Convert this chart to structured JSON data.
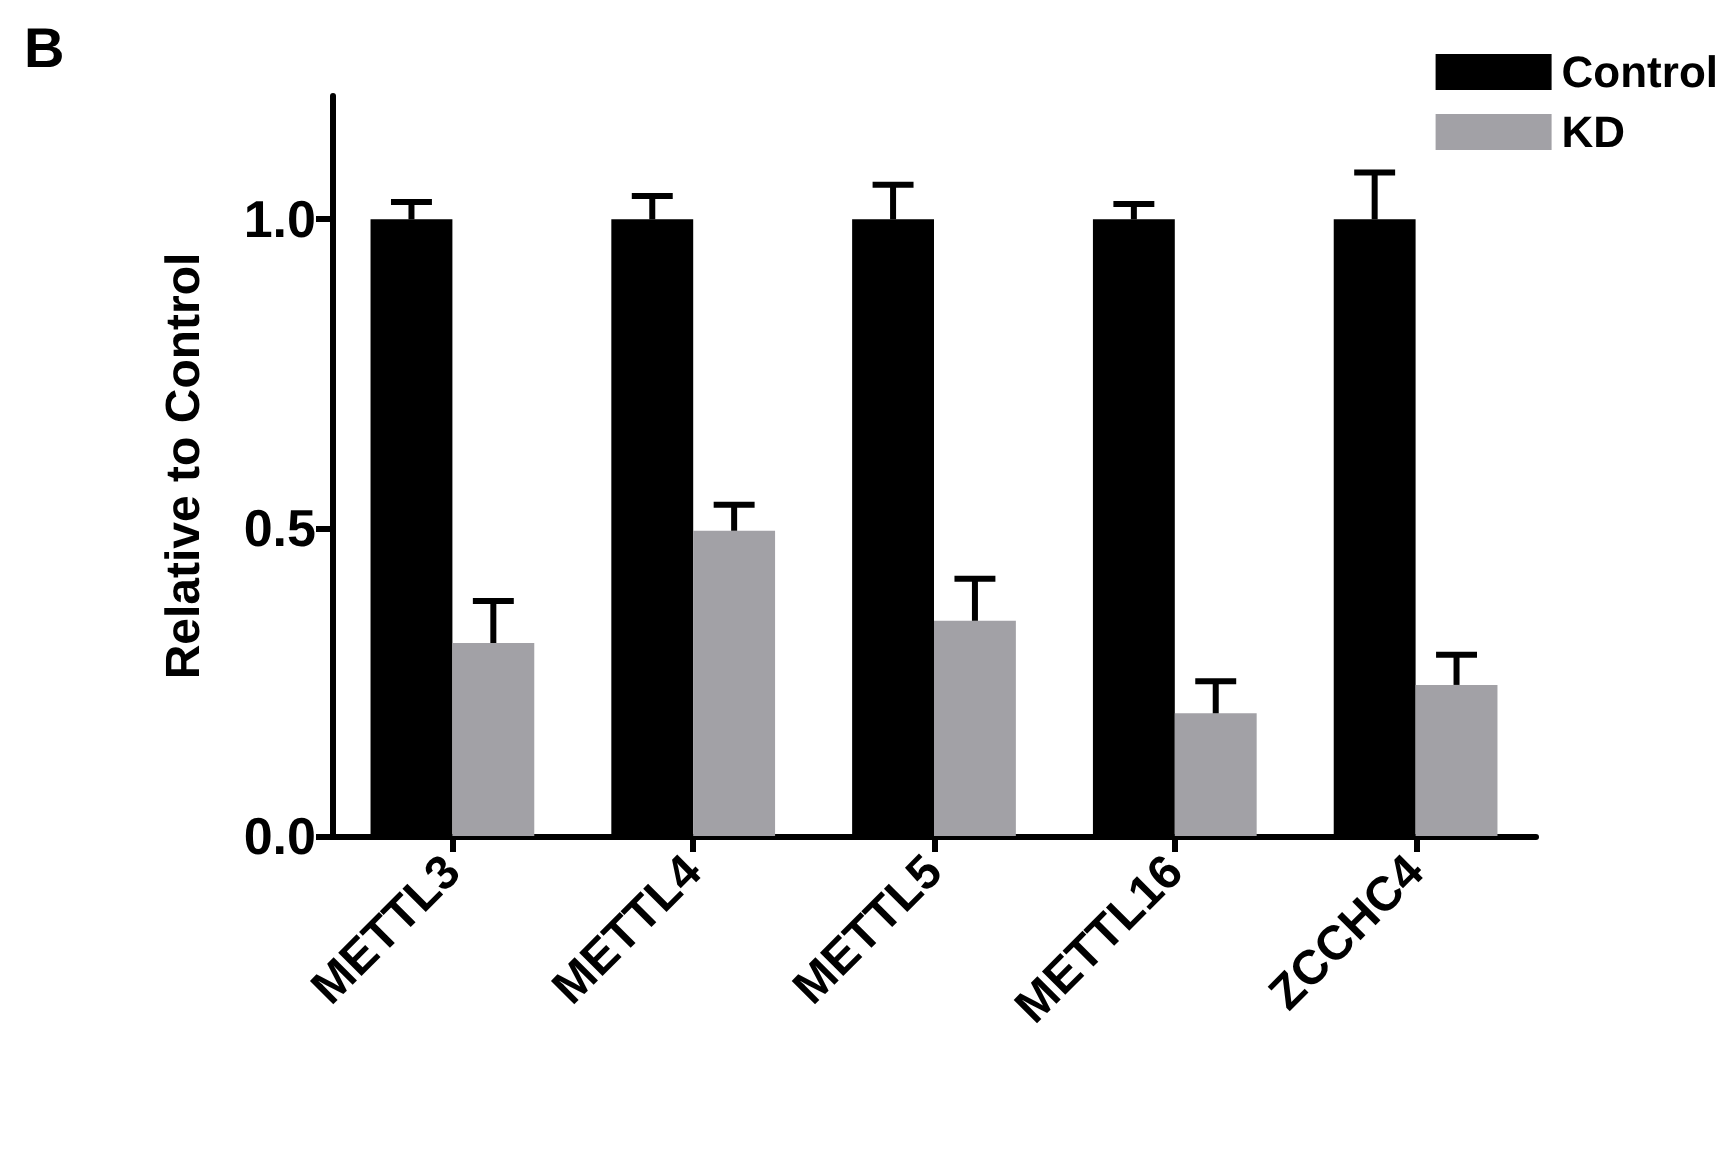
{
  "chart_data": {
    "type": "bar",
    "ylabel": "Relative to Control",
    "annotations": [
      "B"
    ],
    "categories": [
      "METTL3",
      "METTL4",
      "METTL5",
      "METTL16",
      "ZCCHC4"
    ],
    "series": [
      {
        "name": "Control",
        "color": "#000000",
        "values": [
          1.0,
          1.0,
          1.0,
          1.0,
          1.0
        ],
        "errors": [
          [
            1.0,
            1.028
          ],
          [
            1.0,
            1.038
          ],
          [
            1.0,
            1.056
          ],
          [
            1.0,
            1.025
          ],
          [
            1.0,
            1.076
          ]
        ]
      },
      {
        "name": "KD",
        "color": "#a2a1a6",
        "values": [
          0.313,
          0.495,
          0.349,
          0.199,
          0.245
        ],
        "errors": [
          [
            0.313,
            0.381
          ],
          [
            0.495,
            0.537
          ],
          [
            0.349,
            0.417
          ],
          [
            0.199,
            0.251
          ],
          [
            0.245,
            0.294
          ]
        ]
      }
    ],
    "ylim": [
      0,
      1.2
    ],
    "yticks": [
      {
        "value": 0,
        "label": "0.0"
      },
      0.5,
      {
        "value": 1,
        "label": "1.0"
      }
    ],
    "grid": false,
    "legend": "top right"
  }
}
